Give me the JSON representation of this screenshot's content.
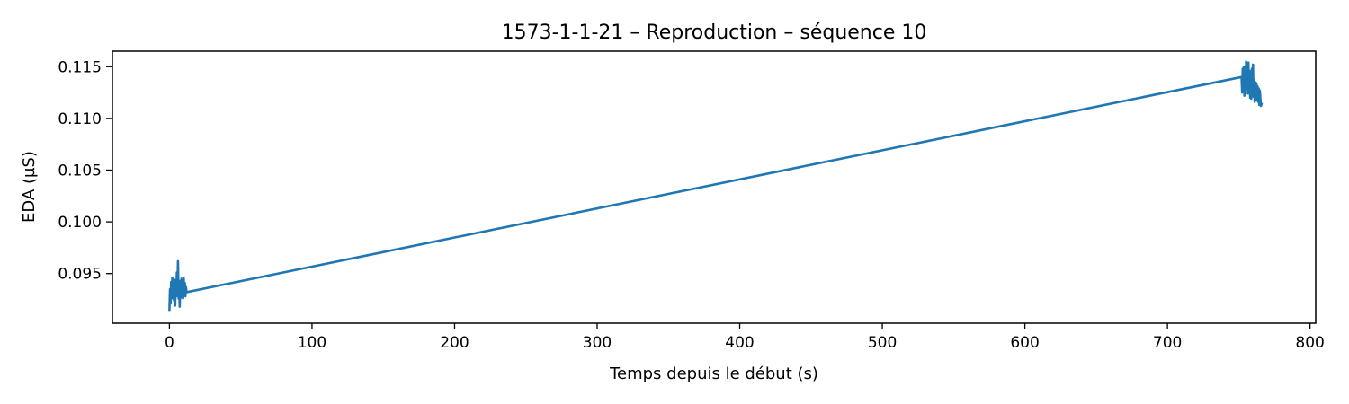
{
  "chart_data": {
    "type": "line",
    "title": "1573-1-1-21 – Reproduction – séquence 10",
    "xlabel": "Temps depuis le début (s)",
    "ylabel": "EDA (µS)",
    "xlim": [
      -40,
      804
    ],
    "ylim": [
      0.0902,
      0.1165
    ],
    "x_ticks": [
      0,
      100,
      200,
      300,
      400,
      500,
      600,
      700,
      800
    ],
    "x_tick_labels": [
      "0",
      "100",
      "200",
      "300",
      "400",
      "500",
      "600",
      "700",
      "800"
    ],
    "y_ticks": [
      0.095,
      0.1,
      0.105,
      0.11,
      0.115
    ],
    "y_tick_labels": [
      "0.095",
      "0.100",
      "0.105",
      "0.110",
      "0.115"
    ],
    "grid": false,
    "series": [
      {
        "color": "#1f77b4",
        "points": [
          [
            0.0,
            0.0915
          ],
          [
            0.4,
            0.0935
          ],
          [
            0.8,
            0.0921
          ],
          [
            1.2,
            0.0942
          ],
          [
            1.6,
            0.0926
          ],
          [
            2.0,
            0.0946
          ],
          [
            2.4,
            0.093
          ],
          [
            2.8,
            0.094
          ],
          [
            3.2,
            0.0924
          ],
          [
            3.6,
            0.0944
          ],
          [
            4.0,
            0.0919
          ],
          [
            4.4,
            0.0938
          ],
          [
            4.8,
            0.0928
          ],
          [
            5.2,
            0.0951
          ],
          [
            5.6,
            0.0932
          ],
          [
            6.0,
            0.0962
          ],
          [
            6.4,
            0.0926
          ],
          [
            6.8,
            0.0943
          ],
          [
            7.2,
            0.0918
          ],
          [
            7.6,
            0.0936
          ],
          [
            8.0,
            0.0929
          ],
          [
            8.4,
            0.0945
          ],
          [
            8.8,
            0.0927
          ],
          [
            9.2,
            0.094
          ],
          [
            9.6,
            0.0926
          ],
          [
            10.0,
            0.0946
          ],
          [
            10.4,
            0.0929
          ],
          [
            10.8,
            0.0941
          ],
          [
            11.2,
            0.0928
          ],
          [
            11.6,
            0.0937
          ],
          [
            12.0,
            0.0932
          ],
          [
            752.0,
            0.114
          ],
          [
            752.4,
            0.1125
          ],
          [
            752.8,
            0.1148
          ],
          [
            753.2,
            0.1131
          ],
          [
            753.6,
            0.115
          ],
          [
            754.0,
            0.1122
          ],
          [
            754.4,
            0.1146
          ],
          [
            754.8,
            0.1128
          ],
          [
            755.2,
            0.1155
          ],
          [
            755.6,
            0.1131
          ],
          [
            756.0,
            0.1152
          ],
          [
            756.4,
            0.1124
          ],
          [
            756.8,
            0.1154
          ],
          [
            757.2,
            0.1126
          ],
          [
            757.6,
            0.1146
          ],
          [
            758.0,
            0.112
          ],
          [
            758.4,
            0.114
          ],
          [
            758.8,
            0.1119
          ],
          [
            759.2,
            0.1148
          ],
          [
            759.6,
            0.1123
          ],
          [
            760.0,
            0.1152
          ],
          [
            760.4,
            0.1121
          ],
          [
            760.8,
            0.1137
          ],
          [
            761.2,
            0.1116
          ],
          [
            761.6,
            0.1135
          ],
          [
            762.0,
            0.1118
          ],
          [
            762.4,
            0.1134
          ],
          [
            762.8,
            0.112
          ],
          [
            763.2,
            0.1131
          ],
          [
            763.6,
            0.1116
          ],
          [
            764.0,
            0.1129
          ],
          [
            764.4,
            0.1113
          ],
          [
            764.8,
            0.1127
          ],
          [
            765.2,
            0.1119
          ],
          [
            765.6,
            0.1112
          ],
          [
            766.0,
            0.1114
          ]
        ]
      }
    ]
  }
}
